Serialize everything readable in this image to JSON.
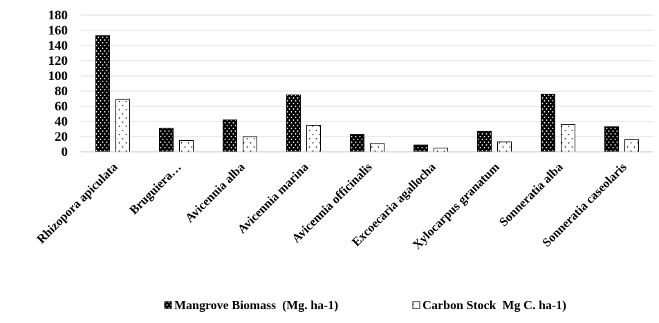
{
  "chart_data": {
    "type": "bar",
    "title": "",
    "xlabel": "",
    "ylabel": "",
    "ylim": [
      0,
      180
    ],
    "yticks": [
      0,
      20,
      40,
      60,
      80,
      100,
      120,
      140,
      160,
      180
    ],
    "grid": true,
    "legend_position": "bottom",
    "categories": [
      "Rhizopora apiculata",
      "Bruguiera…",
      "Avicennia alba",
      "Avicennia marina",
      "Avicennia officinalis",
      "Excoecaria agallocha",
      "Xylocarpus granatum",
      "Sonneratia alba",
      "Sonneratia caseolaris"
    ],
    "series": [
      {
        "name": "Mangrove Biomass  (Mg. ha-1)",
        "values": [
          153,
          31,
          42,
          75,
          23,
          9,
          27,
          76,
          33
        ],
        "fill": "#000000",
        "pattern": "white-dots-on-black"
      },
      {
        "name": "Carbon Stock  Mg C. ha-1)",
        "values": [
          69,
          15,
          20,
          35,
          11,
          5,
          13,
          36,
          16
        ],
        "fill": "#ffffff",
        "pattern": "black-dots-on-white"
      }
    ]
  }
}
